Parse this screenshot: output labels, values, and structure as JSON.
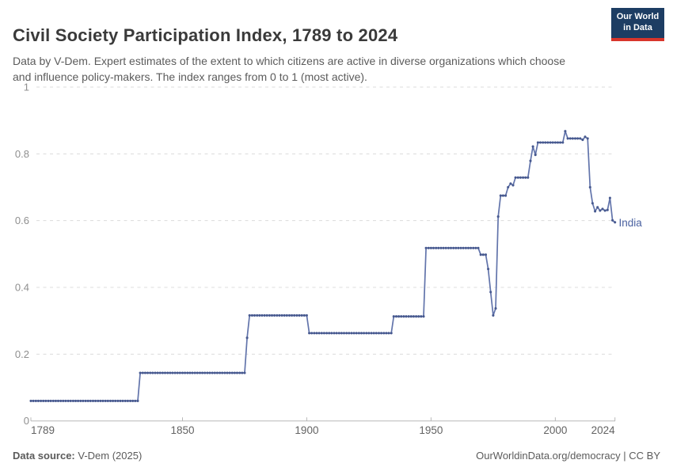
{
  "header": {
    "title": "Civil Society Participation Index, 1789 to 2024",
    "subtitle": "Data by V-Dem. Expert estimates of the extent to which citizens are active in diverse organizations which choose and influence policy-makers. The index ranges from 0 to 1 (most active)."
  },
  "logo": {
    "line1": "Our World",
    "line2": "in Data",
    "bg_color": "#1d3d63",
    "bar_color": "#d8352b"
  },
  "footer": {
    "source_label": "Data source:",
    "source_value": " V-Dem (2025)",
    "credit": "OurWorldinData.org/democracy | CC BY"
  },
  "chart_data": {
    "type": "line",
    "title": "Civil Society Participation Index, 1789 to 2024",
    "xlabel": "",
    "ylabel": "",
    "xlim": [
      1789,
      2024
    ],
    "ylim": [
      0,
      1
    ],
    "x_ticks": [
      1789,
      1850,
      1900,
      1950,
      2000,
      2024
    ],
    "y_ticks": [
      0,
      0.2,
      0.4,
      0.6,
      0.8,
      1
    ],
    "grid": "dashed-horizontal",
    "legend_position": "end-of-line",
    "colors": {
      "line": "#6274ab",
      "dot": "#47598f",
      "grid": "#dcdcdc",
      "axis": "#b8b8b8"
    },
    "series": [
      {
        "name": "India",
        "points": [
          [
            1789,
            0.06
          ],
          [
            1832,
            0.06
          ],
          [
            1833,
            0.144
          ],
          [
            1875,
            0.144
          ],
          [
            1876,
            0.249
          ],
          [
            1877,
            0.316
          ],
          [
            1900,
            0.316
          ],
          [
            1901,
            0.263
          ],
          [
            1934,
            0.263
          ],
          [
            1935,
            0.313
          ],
          [
            1947,
            0.313
          ],
          [
            1948,
            0.518
          ],
          [
            1969,
            0.518
          ],
          [
            1970,
            0.498
          ],
          [
            1972,
            0.498
          ],
          [
            1973,
            0.455
          ],
          [
            1974,
            0.386
          ],
          [
            1975,
            0.316
          ],
          [
            1976,
            0.337
          ],
          [
            1977,
            0.612
          ],
          [
            1978,
            0.675
          ],
          [
            1980,
            0.675
          ],
          [
            1981,
            0.7
          ],
          [
            1982,
            0.711
          ],
          [
            1983,
            0.706
          ],
          [
            1984,
            0.729
          ],
          [
            1989,
            0.729
          ],
          [
            1990,
            0.779
          ],
          [
            1991,
            0.822
          ],
          [
            1992,
            0.797
          ],
          [
            1993,
            0.834
          ],
          [
            2003,
            0.834
          ],
          [
            2004,
            0.868
          ],
          [
            2005,
            0.846
          ],
          [
            2010,
            0.846
          ],
          [
            2011,
            0.842
          ],
          [
            2012,
            0.851
          ],
          [
            2013,
            0.846
          ],
          [
            2014,
            0.7
          ],
          [
            2015,
            0.652
          ],
          [
            2016,
            0.628
          ],
          [
            2017,
            0.64
          ],
          [
            2018,
            0.63
          ],
          [
            2019,
            0.635
          ],
          [
            2020,
            0.63
          ],
          [
            2021,
            0.632
          ],
          [
            2022,
            0.668
          ],
          [
            2023,
            0.601
          ],
          [
            2024,
            0.595
          ]
        ]
      }
    ]
  }
}
